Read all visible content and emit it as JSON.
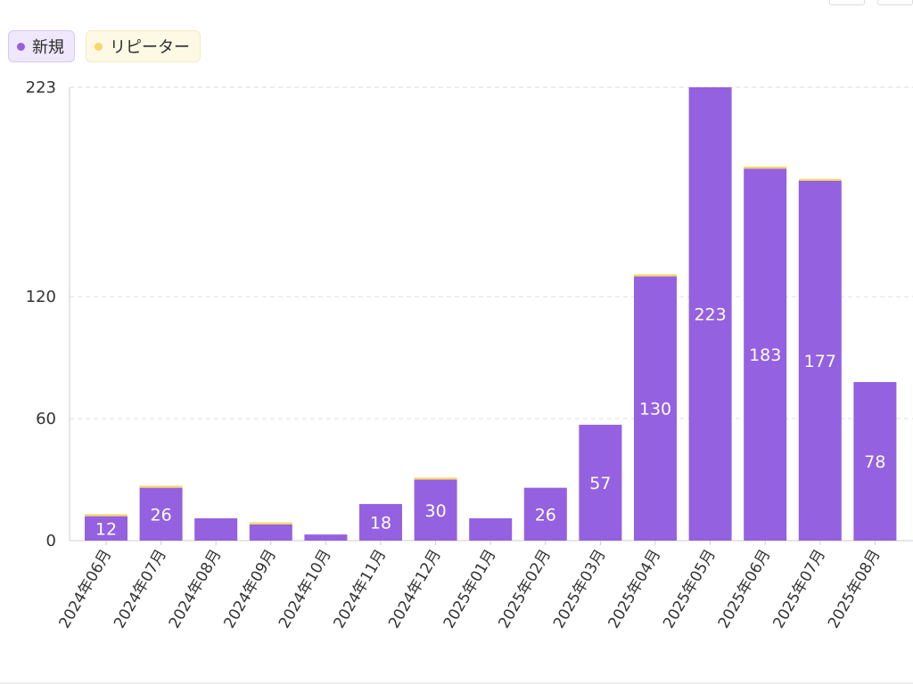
{
  "legend": {
    "new_label": "新規",
    "repeater_label": "リピーター"
  },
  "colors": {
    "new": "#9461e0",
    "repeater": "#f7d66b",
    "grid": "#dddddd",
    "axis_text": "#333333",
    "value_label": "#ffffff"
  },
  "chart_data": {
    "type": "bar",
    "stacked": true,
    "categories": [
      "2024年06月",
      "2024年07月",
      "2024年08月",
      "2024年09月",
      "2024年10月",
      "2024年11月",
      "2024年12月",
      "2025年01月",
      "2025年02月",
      "2025年03月",
      "2025年04月",
      "2025年05月",
      "2025年06月",
      "2025年07月",
      "2025年08月"
    ],
    "series": [
      {
        "name": "新規",
        "values": [
          12,
          26,
          11,
          8,
          3,
          18,
          30,
          11,
          26,
          57,
          130,
          223,
          183,
          177,
          78
        ]
      },
      {
        "name": "リピーター",
        "values": [
          1,
          1,
          0,
          1,
          0,
          0,
          1,
          0,
          0,
          0,
          1,
          0,
          1,
          1,
          0
        ]
      }
    ],
    "data_labels": [
      "12",
      "26",
      "",
      "",
      "",
      "18",
      "30",
      "",
      "26",
      "57",
      "130",
      "223",
      "183",
      "177",
      "78"
    ],
    "yticks": [
      0,
      60,
      120,
      223
    ],
    "ylim": [
      0,
      223
    ],
    "grid": true,
    "legend_position": "top-left"
  }
}
